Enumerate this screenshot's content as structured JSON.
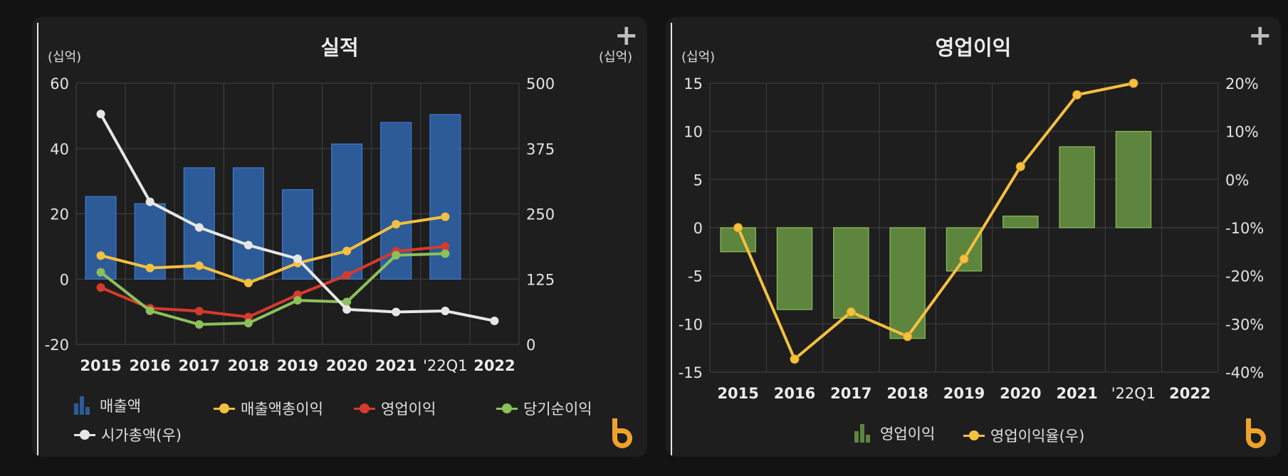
{
  "panels": [
    {
      "title": "실적",
      "left_unit": "(십억)",
      "right_unit": "(십억)",
      "plus_icon": "plus-icon",
      "logo_icon": "brand-b-logo-icon"
    },
    {
      "title": "영업이익",
      "left_unit": "(십억)",
      "plus_icon": "plus-icon",
      "logo_icon": "brand-b-logo-icon"
    }
  ],
  "chart_data": [
    {
      "type": "bar",
      "title": "실적",
      "categories": [
        "2015",
        "2016",
        "2017",
        "2018",
        "2019",
        "2020",
        "2021",
        "'22Q1",
        "2022"
      ],
      "y_left": {
        "label": "(십억)",
        "range": [
          -20,
          60
        ],
        "ticks": [
          "60",
          "40",
          "20",
          "0",
          "-20"
        ],
        "tick_values": [
          60,
          40,
          20,
          0,
          -20
        ]
      },
      "y_right": {
        "label": "(십억)",
        "range": [
          0,
          500
        ],
        "ticks": [
          "500",
          "375",
          "250",
          "125",
          "0"
        ],
        "tick_values": [
          500,
          375,
          250,
          125,
          0
        ]
      },
      "grid": true,
      "legend_position": "bottom",
      "series": [
        {
          "name": "매출액",
          "kind": "bar",
          "axis": "left",
          "color": "#2c5b98",
          "values": [
            25.3,
            23.1,
            34.1,
            34.1,
            27.4,
            41.4,
            48.0,
            50.4,
            null
          ]
        },
        {
          "name": "매출액총이익",
          "kind": "line",
          "axis": "left",
          "color": "#f4c040",
          "values": [
            7.2,
            3.4,
            4.1,
            -1.2,
            4.9,
            8.6,
            16.8,
            19.1,
            null
          ]
        },
        {
          "name": "영업이익",
          "kind": "line",
          "axis": "left",
          "color": "#d63a2c",
          "values": [
            -2.6,
            -8.9,
            -9.8,
            -11.6,
            -4.8,
            1.2,
            8.5,
            10.0,
            null
          ]
        },
        {
          "name": "당기순이익",
          "kind": "line",
          "axis": "left",
          "color": "#8cc05a",
          "values": [
            2.1,
            -9.7,
            -13.9,
            -13.5,
            -6.5,
            -7.0,
            7.3,
            7.8,
            null
          ]
        },
        {
          "name": "시가총액(우)",
          "kind": "line",
          "axis": "right",
          "color": "#e6e6e6",
          "values": [
            441,
            273,
            224,
            190,
            164,
            67,
            62,
            64,
            45
          ]
        }
      ]
    },
    {
      "type": "bar",
      "title": "영업이익",
      "categories": [
        "2015",
        "2016",
        "2017",
        "2018",
        "2019",
        "2020",
        "2021",
        "'22Q1",
        "2022"
      ],
      "y_left": {
        "label": "(십억)",
        "range": [
          -15,
          15
        ],
        "ticks": [
          "15",
          "10",
          "5",
          "0",
          "-5",
          "-10",
          "-15"
        ],
        "tick_values": [
          15,
          10,
          5,
          0,
          -5,
          -10,
          -15
        ]
      },
      "y_right": {
        "label": "",
        "range": [
          -40,
          20
        ],
        "ticks": [
          "20%",
          "10%",
          "0%",
          "-10%",
          "-20%",
          "-30%",
          "-40%"
        ],
        "tick_values": [
          20,
          10,
          0,
          -10,
          -20,
          -30,
          -40
        ]
      },
      "grid": true,
      "legend_position": "bottom",
      "series": [
        {
          "name": "영업이익",
          "kind": "bar",
          "axis": "left",
          "color": "#5e853e",
          "values": [
            -2.5,
            -8.5,
            -9.4,
            -11.5,
            -4.5,
            1.2,
            8.4,
            10.0,
            null
          ]
        },
        {
          "name": "영업이익율(우)",
          "kind": "line",
          "axis": "right",
          "color": "#f4c040",
          "values": [
            -10.0,
            -37.3,
            -27.5,
            -32.6,
            -16.5,
            2.7,
            17.6,
            20.0,
            null
          ]
        }
      ]
    }
  ]
}
